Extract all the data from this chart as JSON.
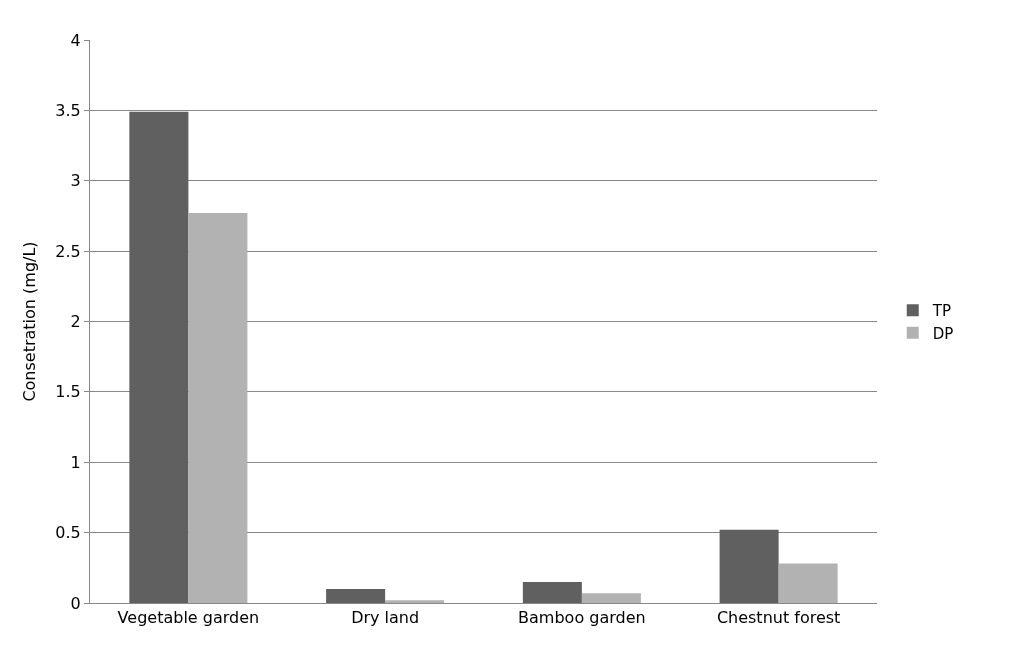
{
  "chart_data": {
    "type": "bar",
    "ylabel": "Consetration (mg/L)",
    "categories": [
      "Vegetable garden",
      "Dry land",
      "Bamboo garden",
      "Chestnut forest"
    ],
    "series": [
      {
        "name": "TP",
        "color": "#606060",
        "values": [
          3.49,
          0.1,
          0.15,
          0.52
        ]
      },
      {
        "name": "DP",
        "color": "#b2b2b2",
        "values": [
          2.77,
          0.02,
          0.07,
          0.28
        ]
      }
    ],
    "ylim": [
      0,
      4
    ],
    "yticks": [
      0,
      0.5,
      1,
      1.5,
      2,
      2.5,
      3,
      3.5,
      4
    ],
    "grid": "y",
    "legend": "right"
  }
}
